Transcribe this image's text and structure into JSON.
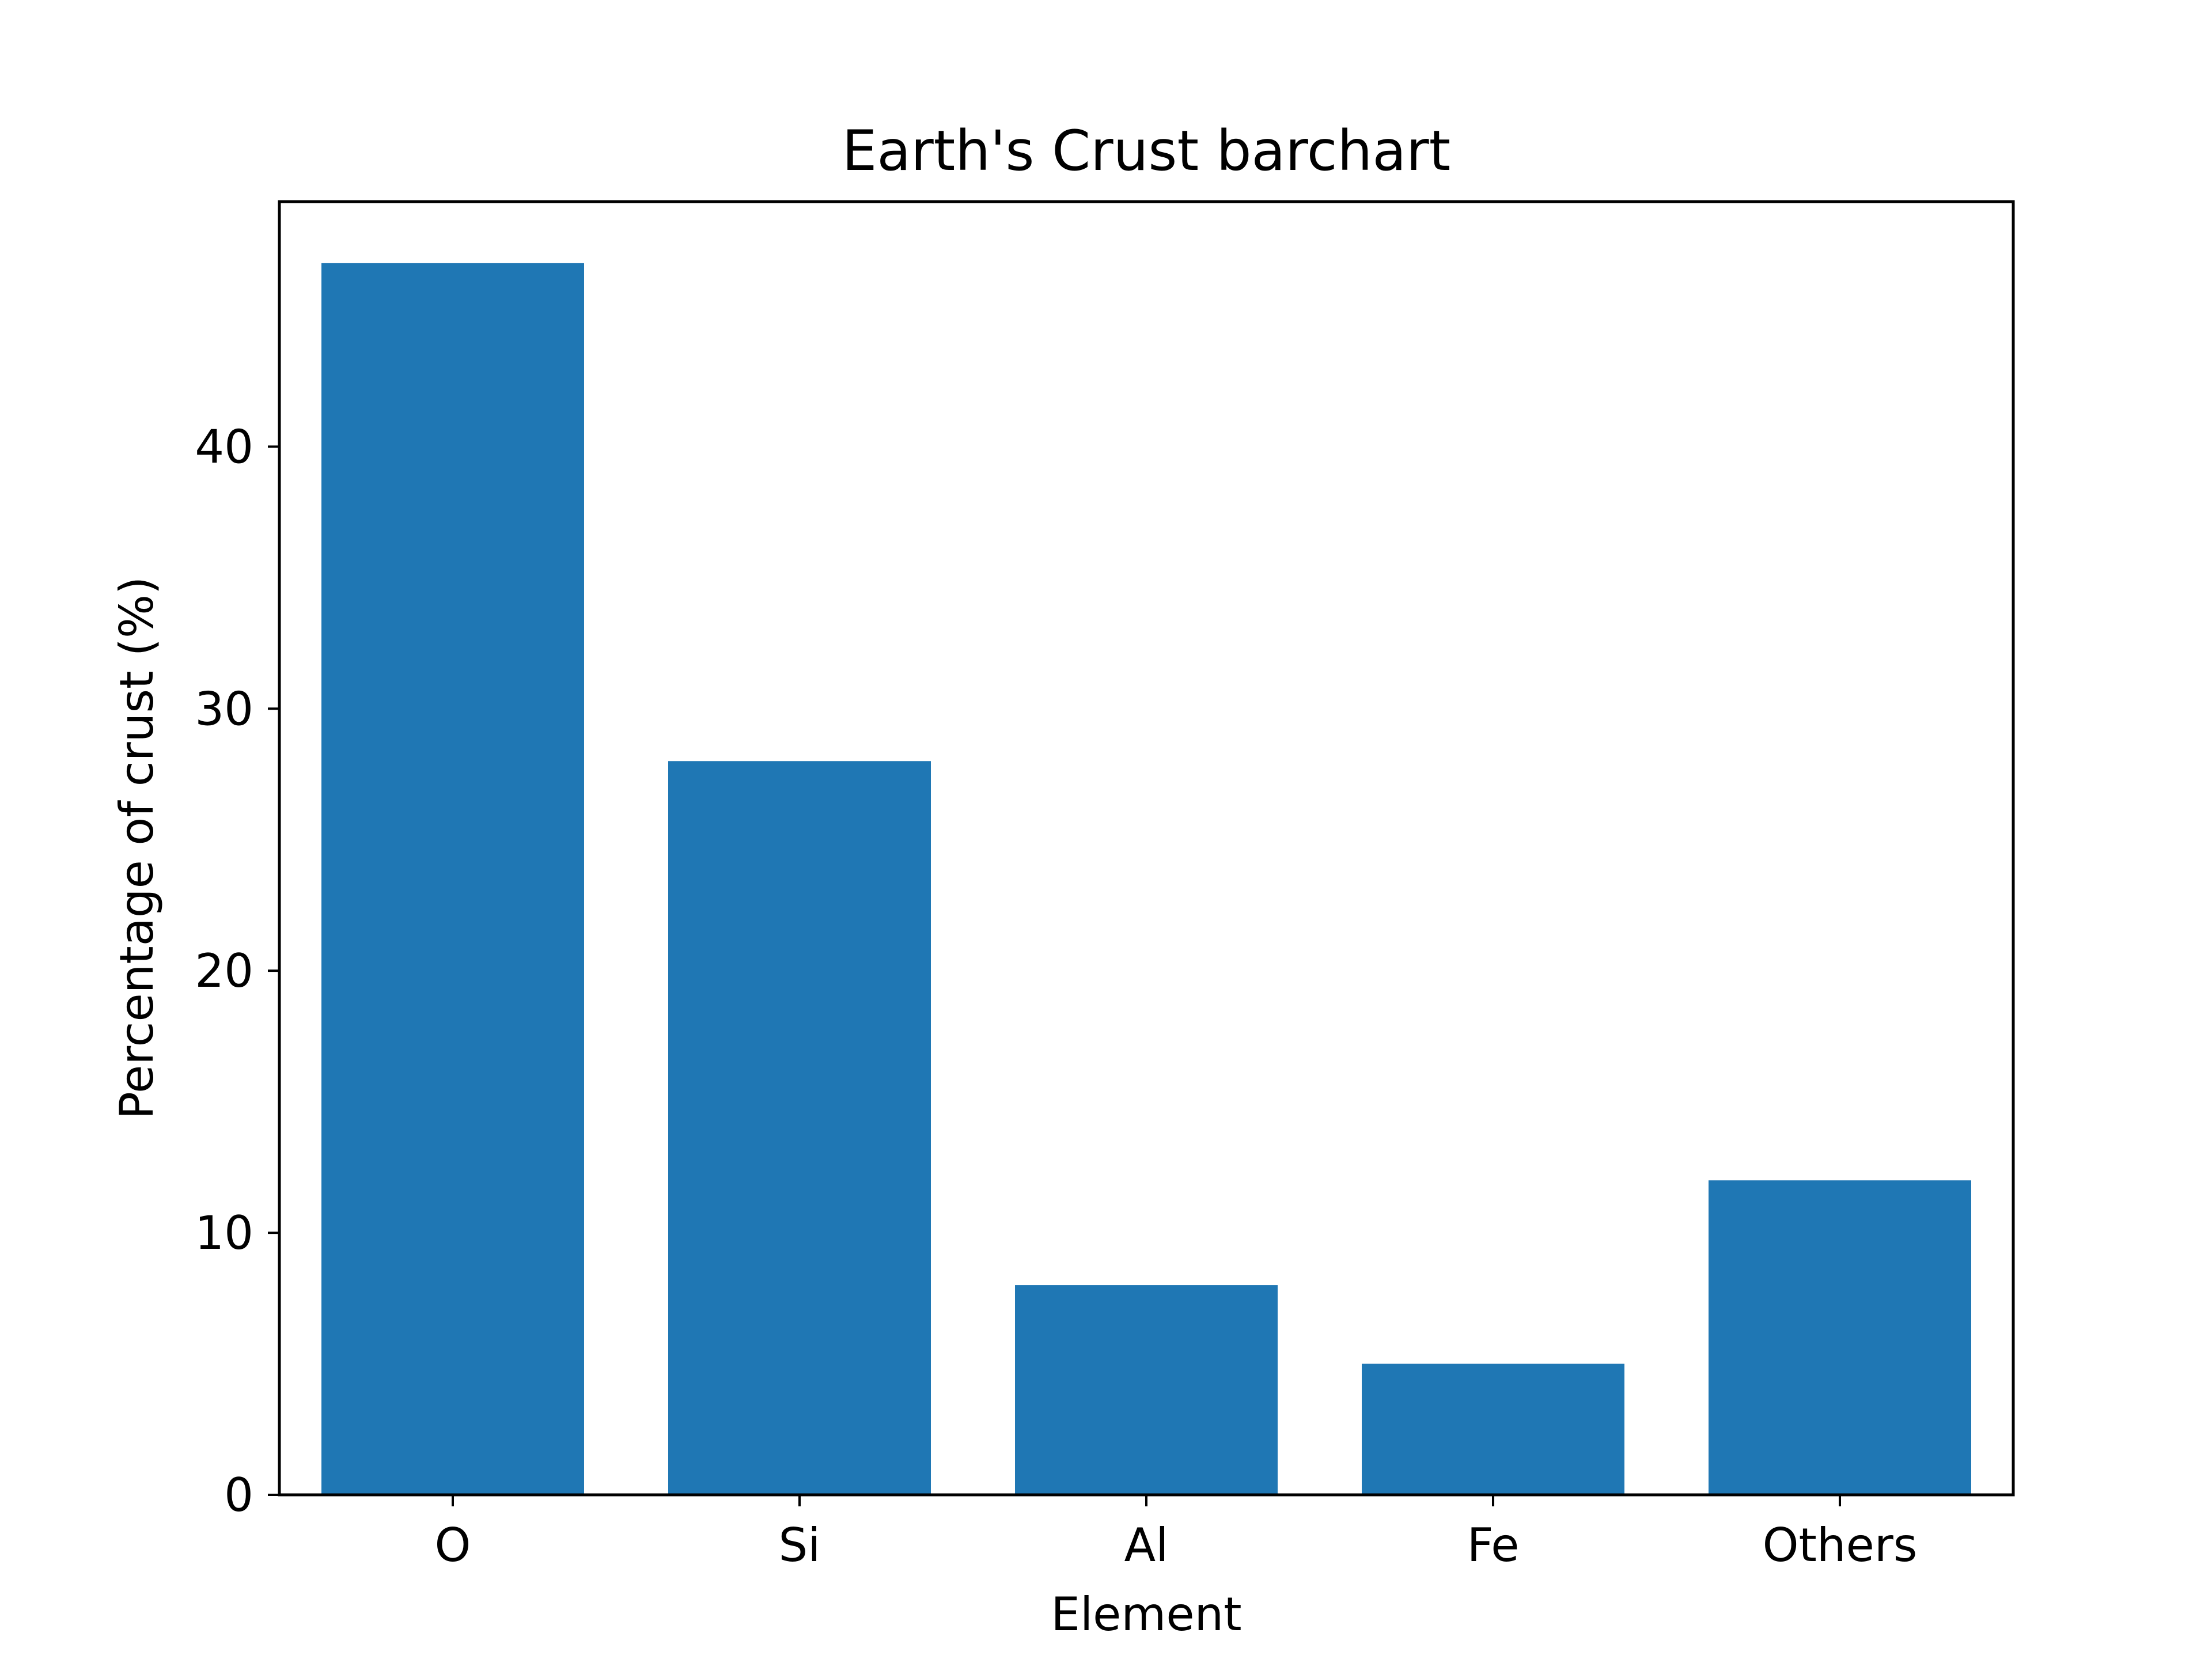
{
  "chart_data": {
    "type": "bar",
    "title": "Earth's Crust barchart",
    "xlabel": "Element",
    "ylabel": "Percentage of crust (%)",
    "categories": [
      "O",
      "Si",
      "Al",
      "Fe",
      "Others"
    ],
    "values": [
      47,
      28,
      8,
      5,
      12
    ],
    "ylim": [
      0,
      49.35
    ],
    "yticks": [
      0,
      10,
      20,
      30,
      40
    ],
    "grid": false,
    "bar_color": "#1f77b4"
  }
}
